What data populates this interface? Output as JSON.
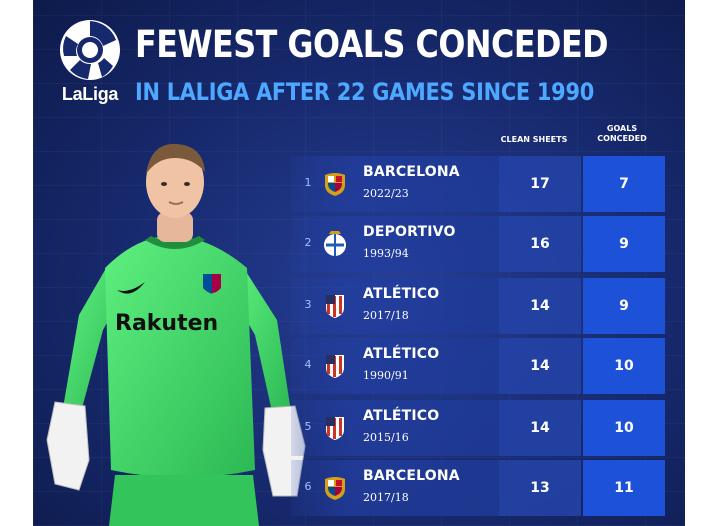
{
  "brand": {
    "logo_text": "LaLiga",
    "logo_icon": "laliga-ball-icon"
  },
  "header": {
    "title": "FEWEST GOALS CONCEDED",
    "subtitle": "IN LALIGA AFTER 22 GAMES SINCE 1990"
  },
  "table": {
    "columns": {
      "clean_sheets": "CLEAN SHEETS",
      "goals_conceded_line1": "GOALS",
      "goals_conceded_line2": "CONCEDED"
    },
    "rows": [
      {
        "rank": "1",
        "team": "BARCELONA",
        "season": "2022/23",
        "clean_sheets": "17",
        "goals_conceded": "7",
        "crest": "barcelona-crest-icon"
      },
      {
        "rank": "2",
        "team": "DEPORTIVO",
        "season": "1993/94",
        "clean_sheets": "16",
        "goals_conceded": "9",
        "crest": "deportivo-crest-icon"
      },
      {
        "rank": "3",
        "team": "ATLÉTICO",
        "season": "2017/18",
        "clean_sheets": "14",
        "goals_conceded": "9",
        "crest": "atletico-crest-icon"
      },
      {
        "rank": "4",
        "team": "ATLÉTICO",
        "season": "1990/91",
        "clean_sheets": "14",
        "goals_conceded": "10",
        "crest": "atletico-crest-icon"
      },
      {
        "rank": "5",
        "team": "ATLÉTICO",
        "season": "2015/16",
        "clean_sheets": "14",
        "goals_conceded": "10",
        "crest": "atletico-crest-icon"
      },
      {
        "rank": "6",
        "team": "BARCELONA",
        "season": "2017/18",
        "clean_sheets": "13",
        "goals_conceded": "11",
        "crest": "barcelona-crest-icon"
      }
    ]
  },
  "player": {
    "sponsor_text": "Rakuten",
    "image": "goalkeeper-photo"
  },
  "colors": {
    "background": "#17296d",
    "accent_blue": "#4fa8ff",
    "goals_cell": "#1d52d8",
    "kit_green": "#3fd56a"
  }
}
